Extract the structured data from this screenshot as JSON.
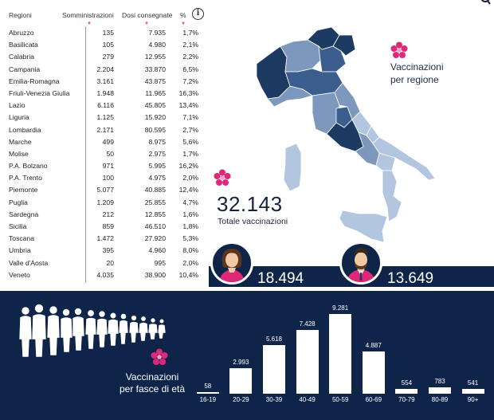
{
  "table": {
    "headers": {
      "region": "Regioni",
      "administered": "Somministrazioni",
      "delivered": "Dosi consegnate",
      "percent": "%"
    },
    "rows": [
      {
        "region": "Abruzzo",
        "administered": "135",
        "delivered": "7.935",
        "percent": "1,7%"
      },
      {
        "region": "Basilicata",
        "administered": "105",
        "delivered": "4.980",
        "percent": "2,1%"
      },
      {
        "region": "Calabria",
        "administered": "279",
        "delivered": "12.955",
        "percent": "2,2%"
      },
      {
        "region": "Campania",
        "administered": "2.204",
        "delivered": "33.870",
        "percent": "6,5%"
      },
      {
        "region": "Emilia-Romagna",
        "administered": "3.161",
        "delivered": "43.875",
        "percent": "7,2%"
      },
      {
        "region": "Friuli-Venezia Giulia",
        "administered": "1.948",
        "delivered": "11.965",
        "percent": "16,3%"
      },
      {
        "region": "Lazio",
        "administered": "6.116",
        "delivered": "45.805",
        "percent": "13,4%"
      },
      {
        "region": "Liguria",
        "administered": "1.125",
        "delivered": "15.920",
        "percent": "7,1%"
      },
      {
        "region": "Lombardia",
        "administered": "2.171",
        "delivered": "80.595",
        "percent": "2,7%"
      },
      {
        "region": "Marche",
        "administered": "499",
        "delivered": "8.975",
        "percent": "5,6%"
      },
      {
        "region": "Molise",
        "administered": "50",
        "delivered": "2.975",
        "percent": "1,7%"
      },
      {
        "region": "P.A. Bolzano",
        "administered": "971",
        "delivered": "5.995",
        "percent": "16,2%"
      },
      {
        "region": "P.A. Trento",
        "administered": "100",
        "delivered": "4.975",
        "percent": "2,0%"
      },
      {
        "region": "Piemonte",
        "administered": "5.077",
        "delivered": "40.885",
        "percent": "12,4%"
      },
      {
        "region": "Puglia",
        "administered": "1.209",
        "delivered": "25.855",
        "percent": "4,7%"
      },
      {
        "region": "Sardegna",
        "administered": "212",
        "delivered": "12.855",
        "percent": "1,6%"
      },
      {
        "region": "Sicilia",
        "administered": "859",
        "delivered": "46.510",
        "percent": "1,8%"
      },
      {
        "region": "Toscana",
        "administered": "1.472",
        "delivered": "27.920",
        "percent": "5,3%"
      },
      {
        "region": "Umbria",
        "administered": "395",
        "delivered": "4.960",
        "percent": "8,0%"
      },
      {
        "region": "Valle d'Aosta",
        "administered": "20",
        "delivered": "995",
        "percent": "2,0%"
      },
      {
        "region": "Veneto",
        "administered": "4.035",
        "delivered": "38.900",
        "percent": "10,4%"
      }
    ]
  },
  "map_section": {
    "title_line1": "Vaccinazioni",
    "title_line2": "per regione"
  },
  "totals": {
    "total_value": "32.143",
    "total_label": "Totale vaccinazioni",
    "female_value": "18.494",
    "male_value": "13.649"
  },
  "age_section": {
    "title_line1": "Vaccinazioni",
    "title_line2": "per fasce di età"
  },
  "colors": {
    "navy": "#0e2549",
    "pink": "#e0287a",
    "map_dark": "#1d3a63",
    "map_mid": "#7e97bd",
    "map_light": "#b3c6e0"
  },
  "chart_data": {
    "type": "bar",
    "categories": [
      "16-19",
      "20-29",
      "30-39",
      "40-49",
      "50-59",
      "60-69",
      "70-79",
      "80-89",
      "90+"
    ],
    "values": [
      58,
      2993,
      5618,
      7428,
      9281,
      4887,
      554,
      783,
      541
    ],
    "value_labels": [
      "58",
      "2.993",
      "5.618",
      "7.428",
      "9.281",
      "4.887",
      "554",
      "783",
      "541"
    ],
    "title": "",
    "ylim": [
      0,
      9281
    ]
  }
}
